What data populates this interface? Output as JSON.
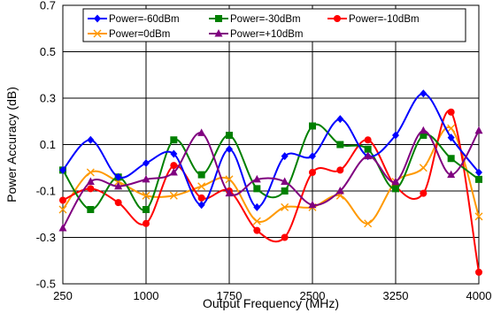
{
  "chart_data": {
    "type": "line",
    "xlabel": "Output Frequency (MHz)",
    "ylabel": "Power Accuracy (dB)",
    "xlim": [
      250,
      4000
    ],
    "ylim": [
      -0.5,
      0.7
    ],
    "xticks": [
      250,
      1000,
      1750,
      2500,
      3250,
      4000
    ],
    "xtick_labels": [
      "250",
      "1000",
      "1750",
      "2500",
      "3250",
      "4000"
    ],
    "yticks": [
      -0.5,
      -0.3,
      -0.1,
      0.1,
      0.3,
      0.5,
      0.7
    ],
    "ytick_labels": [
      "-0.5",
      "-0.3",
      "-0.1",
      "0.1",
      "0.3",
      "0.5",
      "0.7"
    ],
    "x_gridlines": [
      250,
      1000,
      1750,
      2500,
      3250,
      4000
    ],
    "y_gridlines": [
      -0.5,
      -0.3,
      -0.1,
      0.1,
      0.3,
      0.5,
      0.7
    ],
    "legend_position": "top, inside plot",
    "x": [
      250,
      500,
      750,
      1000,
      1250,
      1500,
      1750,
      2000,
      2250,
      2500,
      2750,
      3000,
      3250,
      3500,
      3750,
      4000
    ],
    "series": [
      {
        "name": "Power=-60dBm",
        "color": "#0000ff",
        "marker": "diamond",
        "values": [
          -0.01,
          0.12,
          -0.04,
          0.02,
          0.06,
          -0.16,
          0.08,
          -0.17,
          0.05,
          0.05,
          0.21,
          0.05,
          0.14,
          0.32,
          0.13,
          -0.02
        ]
      },
      {
        "name": "Power=-30dBm",
        "color": "#008000",
        "marker": "square",
        "values": [
          -0.01,
          -0.18,
          -0.04,
          -0.18,
          0.12,
          -0.03,
          0.14,
          -0.09,
          -0.1,
          0.18,
          0.1,
          0.08,
          -0.09,
          0.14,
          0.04,
          -0.05
        ]
      },
      {
        "name": "Power=-10dBm",
        "color": "#ff0000",
        "marker": "circle",
        "values": [
          -0.14,
          -0.09,
          -0.15,
          -0.24,
          0.01,
          -0.13,
          -0.1,
          -0.27,
          -0.3,
          -0.02,
          -0.01,
          0.12,
          -0.08,
          -0.11,
          0.24,
          -0.45
        ]
      },
      {
        "name": "Power=0dBm",
        "color": "#ff9900",
        "marker": "x",
        "values": [
          -0.18,
          -0.02,
          -0.06,
          -0.12,
          -0.12,
          -0.08,
          -0.05,
          -0.23,
          -0.17,
          -0.17,
          -0.12,
          -0.24,
          -0.06,
          0.0,
          0.17,
          -0.21
        ]
      },
      {
        "name": "Power=+10dBm",
        "color": "#800080",
        "marker": "triangle",
        "values": [
          -0.26,
          -0.06,
          -0.08,
          -0.05,
          -0.02,
          0.15,
          -0.11,
          -0.05,
          -0.06,
          -0.16,
          -0.1,
          0.05,
          -0.06,
          0.16,
          -0.03,
          0.16
        ]
      }
    ]
  }
}
